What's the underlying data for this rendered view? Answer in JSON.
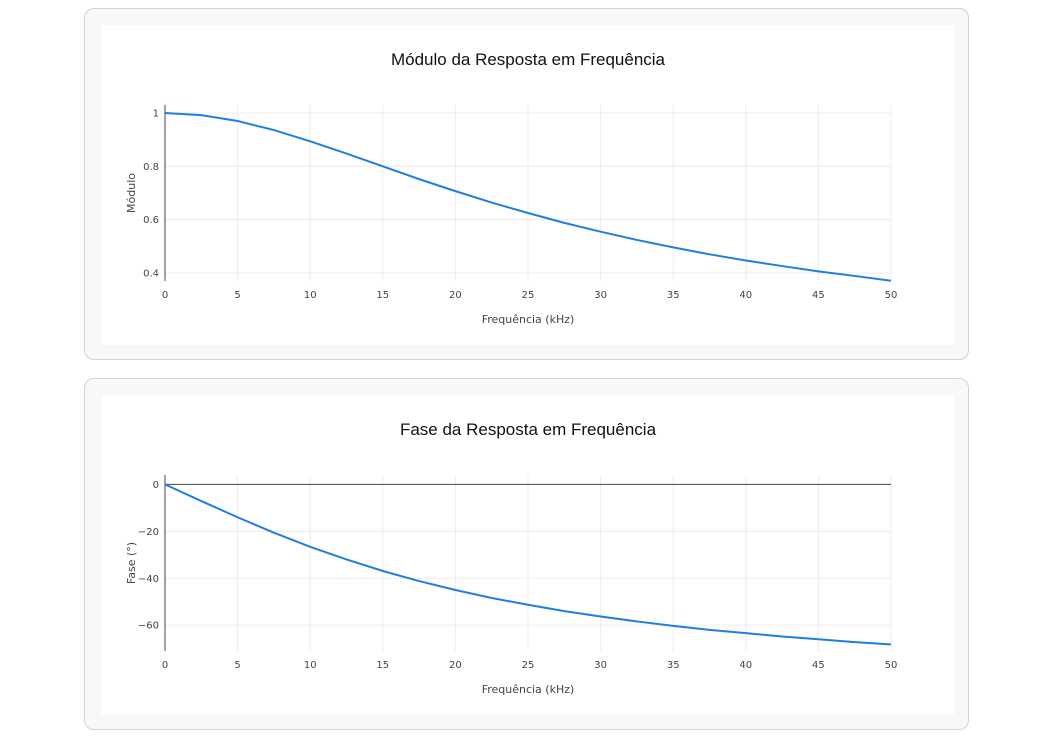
{
  "chart_data": [
    {
      "type": "line",
      "title": "Módulo da Resposta em Frequência",
      "xlabel": "Frequência (kHz)",
      "ylabel": "Módulo",
      "xlim": [
        0,
        50
      ],
      "ylim": [
        0.37,
        1.03
      ],
      "xticks": [
        "0",
        "5",
        "10",
        "15",
        "20",
        "25",
        "30",
        "35",
        "40",
        "45",
        "50"
      ],
      "yticks": [
        "0.4",
        "0.6",
        "0.8",
        "1"
      ],
      "grid": true,
      "series": [
        {
          "color": "#1f7fe0",
          "x": [
            0,
            2.5,
            5,
            7.5,
            10,
            12.5,
            15,
            17.5,
            20,
            22.5,
            25,
            27.5,
            30,
            32.5,
            35,
            37.5,
            40,
            42.5,
            45,
            47.5,
            50
          ],
          "y": [
            1.0,
            0.992,
            0.97,
            0.936,
            0.894,
            0.848,
            0.8,
            0.752,
            0.707,
            0.664,
            0.625,
            0.588,
            0.555,
            0.524,
            0.496,
            0.47,
            0.447,
            0.426,
            0.406,
            0.389,
            0.371
          ]
        }
      ]
    },
    {
      "type": "line",
      "title": "Fase da Resposta em Frequência",
      "xlabel": "Frequência (kHz)",
      "ylabel": "Fase (°)",
      "xlim": [
        0,
        50
      ],
      "ylim": [
        -71,
        4
      ],
      "xticks": [
        "0",
        "5",
        "10",
        "15",
        "20",
        "25",
        "30",
        "35",
        "40",
        "45",
        "50"
      ],
      "yticks": [
        "−60",
        "−40",
        "−20",
        "0"
      ],
      "ytick_values": [
        -60,
        -40,
        -20,
        0
      ],
      "grid": true,
      "series": [
        {
          "color": "#1f7fe0",
          "x": [
            0,
            2.5,
            5,
            7.5,
            10,
            12.5,
            15,
            17.5,
            20,
            22.5,
            25,
            27.5,
            30,
            32.5,
            35,
            37.5,
            40,
            42.5,
            45,
            47.5,
            50
          ],
          "y": [
            0,
            -7.1,
            -14.0,
            -20.6,
            -26.6,
            -32.0,
            -36.9,
            -41.2,
            -45.0,
            -48.4,
            -51.3,
            -54.0,
            -56.3,
            -58.4,
            -60.3,
            -62.0,
            -63.4,
            -64.8,
            -66.0,
            -67.2,
            -68.2
          ]
        }
      ]
    }
  ]
}
